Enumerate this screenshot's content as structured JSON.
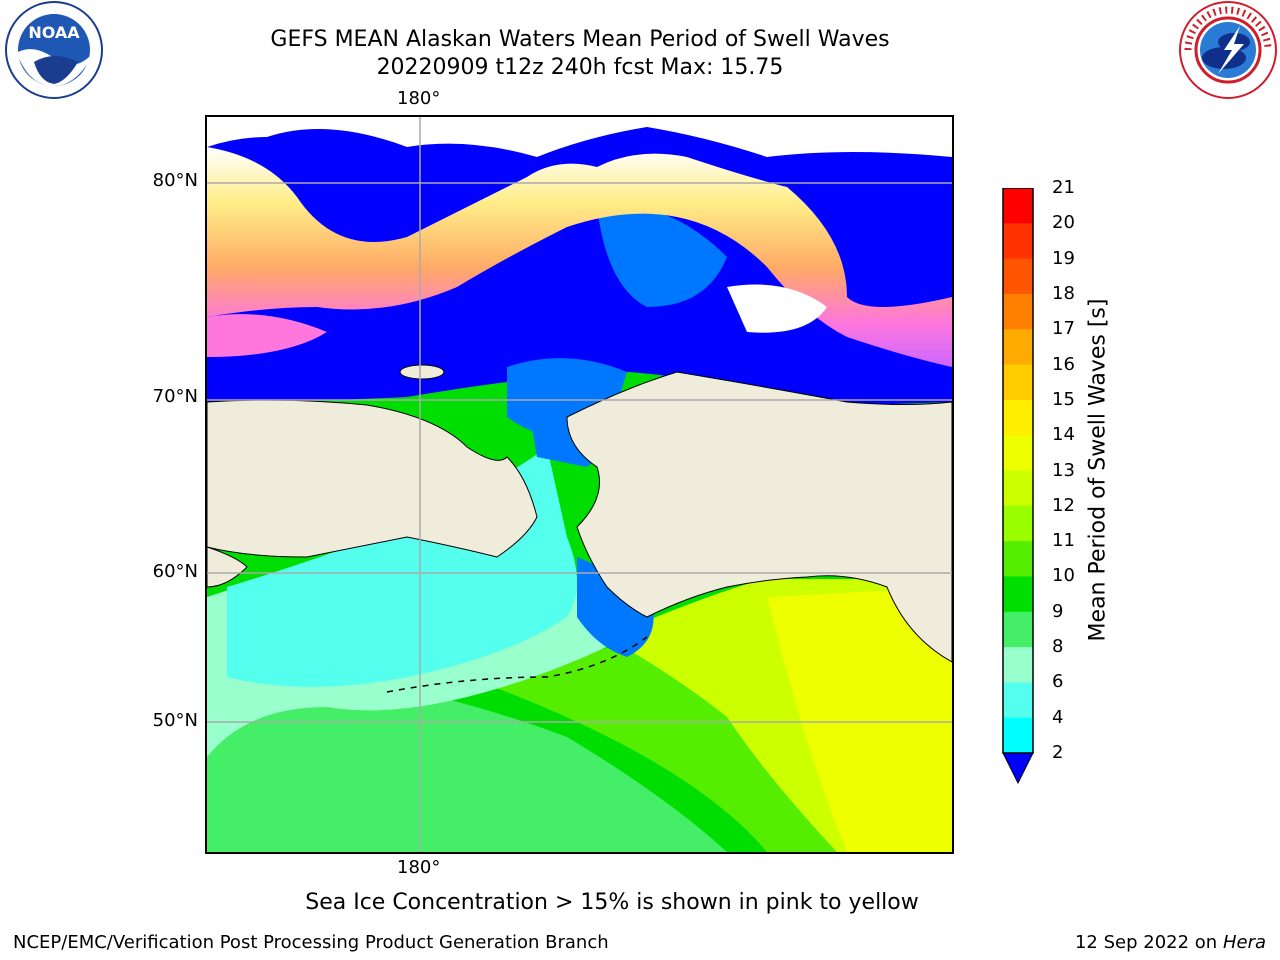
{
  "header": {
    "title_line1": "GEFS MEAN Alaskan Waters Mean Period of Swell Waves",
    "title_line2": "20220909 t12z 240h fcst   Max: 15.75"
  },
  "logos": {
    "left": {
      "icon": "noaa-logo-icon",
      "text": "NOAA"
    },
    "right": {
      "icon": "national-weather-service-logo-icon"
    }
  },
  "map": {
    "latitude_labels": [
      "80°N",
      "70°N",
      "60°N",
      "50°N"
    ],
    "longitude_label_top": "180°",
    "longitude_label_bottom": "180°",
    "colors": {
      "land": "#efecdc",
      "ice_low": "#ff66dd",
      "ice_mid": "#ffbb44",
      "ice_high": "#ffee44",
      "grid": "#aaaaaa",
      "coast": "#000000"
    }
  },
  "colorbar": {
    "label": "Mean Period of Swell Waves [s]",
    "ticks": [
      "21",
      "20",
      "19",
      "18",
      "17",
      "16",
      "15",
      "14",
      "13",
      "12",
      "11",
      "10",
      "9",
      "8",
      "6",
      "4",
      "2"
    ],
    "colors": [
      "#ff0000",
      "#ff3300",
      "#ff5500",
      "#ff8000",
      "#ffaa00",
      "#ffcc00",
      "#ffee00",
      "#eeff00",
      "#ccff00",
      "#99ff00",
      "#55ee00",
      "#00dd00",
      "#44ee66",
      "#99ffcc",
      "#55ffee",
      "#00ffff",
      "#0077ff"
    ],
    "under_color": "#0000ff"
  },
  "notes": {
    "ice_note": "Sea Ice Concentration > 15% is shown in pink to yellow"
  },
  "footer": {
    "left": "NCEP/EMC/Verification Post Processing Product Generation Branch",
    "right_date": "12 Sep 2022 on",
    "right_machine": "Hera"
  }
}
